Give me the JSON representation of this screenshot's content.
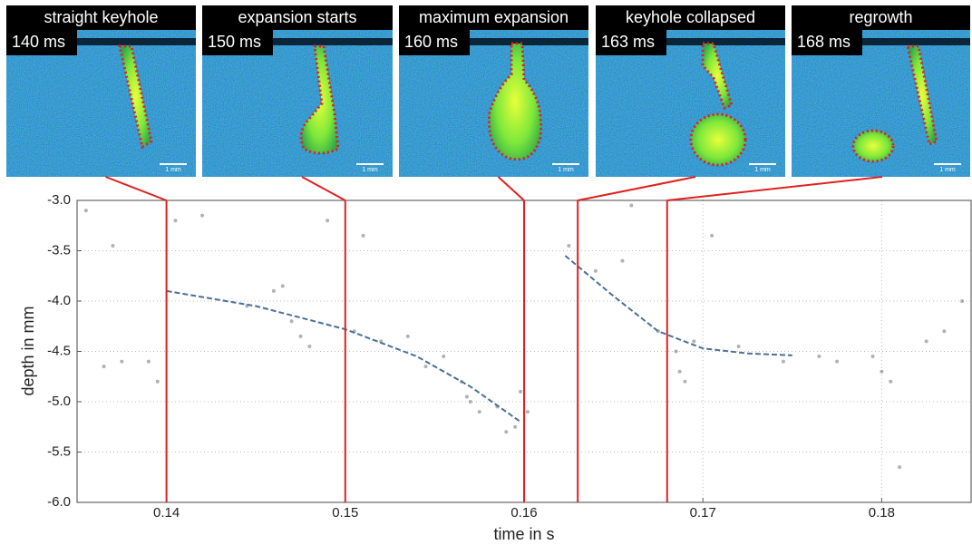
{
  "chart_data": {
    "type": "line",
    "xlabel": "time in s",
    "ylabel": "depth in mm",
    "xlim": [
      0.135,
      0.185
    ],
    "ylim": [
      -6.0,
      -3.0
    ],
    "xticks": [
      0.14,
      0.15,
      0.16,
      0.17,
      0.18
    ],
    "yticks": [
      {
        "value": -6.0,
        "label": "-6.0"
      },
      {
        "value": -5.5,
        "label": "-5.5"
      },
      {
        "value": -5.0,
        "label": "-5.0"
      },
      {
        "value": -4.5,
        "label": "-4.5"
      },
      {
        "value": -4.0,
        "label": "-4.0"
      },
      {
        "value": -3.5,
        "label": "-3.5"
      },
      {
        "value": -3.0,
        "label": "-3.0"
      }
    ],
    "grid": true,
    "series": [
      {
        "color": "#4a6f99",
        "x": [
          0.14,
          0.145,
          0.15,
          0.154,
          0.157,
          0.1598
        ],
        "values": [
          -3.9,
          -4.05,
          -4.28,
          -4.55,
          -4.85,
          -5.2
        ]
      },
      {
        "color": "#4a6f99",
        "x": [
          0.1623,
          0.165,
          0.1675,
          0.17,
          0.1725,
          0.175
        ],
        "values": [
          -3.55,
          -3.95,
          -4.3,
          -4.47,
          -4.52,
          -4.54
        ]
      }
    ],
    "points": {
      "color": "#555555",
      "x": [
        0.1355,
        0.137,
        0.1365,
        0.1375,
        0.139,
        0.1395,
        0.1405,
        0.142,
        0.1445,
        0.146,
        0.1465,
        0.147,
        0.1475,
        0.148,
        0.149,
        0.1505,
        0.151,
        0.152,
        0.1535,
        0.1545,
        0.1555,
        0.1565,
        0.1568,
        0.157,
        0.1575,
        0.1585,
        0.159,
        0.1595,
        0.1598,
        0.1602,
        0.1625,
        0.164,
        0.1655,
        0.166,
        0.1675,
        0.1685,
        0.1687,
        0.169,
        0.1695,
        0.1705,
        0.172,
        0.1745,
        0.1765,
        0.1775,
        0.1795,
        0.18,
        0.1805,
        0.1825,
        0.1835,
        0.181,
        0.1845
      ],
      "values": [
        -3.1,
        -3.45,
        -4.65,
        -4.6,
        -4.6,
        -4.8,
        -3.2,
        -3.15,
        -4.05,
        -3.9,
        -3.85,
        -4.2,
        -4.35,
        -4.45,
        -3.2,
        -4.3,
        -3.35,
        -4.4,
        -4.35,
        -4.65,
        -4.55,
        -4.8,
        -4.95,
        -5.0,
        -5.1,
        -5.05,
        -5.3,
        -5.25,
        -4.9,
        -5.1,
        -3.45,
        -3.7,
        -3.6,
        -3.05,
        -4.3,
        -4.5,
        -4.7,
        -4.8,
        -4.4,
        -3.35,
        -4.45,
        -4.6,
        -4.55,
        -4.6,
        -4.55,
        -4.7,
        -4.8,
        -4.4,
        -4.3,
        -5.65,
        -4.0
      ]
    },
    "event_color": "#e02020",
    "panels": [
      {
        "title": "straight keyhole",
        "time_label": "140 ms",
        "time": 0.14,
        "scale_label": "1 mm"
      },
      {
        "title": "expansion starts",
        "time_label": "150 ms",
        "time": 0.15,
        "scale_label": "1 mm"
      },
      {
        "title": "maximum expansion",
        "time_label": "160 ms",
        "time": 0.16,
        "scale_label": "1 mm"
      },
      {
        "title": "keyhole collapsed",
        "time_label": "163 ms",
        "time": 0.163,
        "scale_label": "1 mm"
      },
      {
        "title": "regrowth",
        "time_label": "168 ms",
        "time": 0.168,
        "scale_label": "1 mm"
      }
    ]
  }
}
